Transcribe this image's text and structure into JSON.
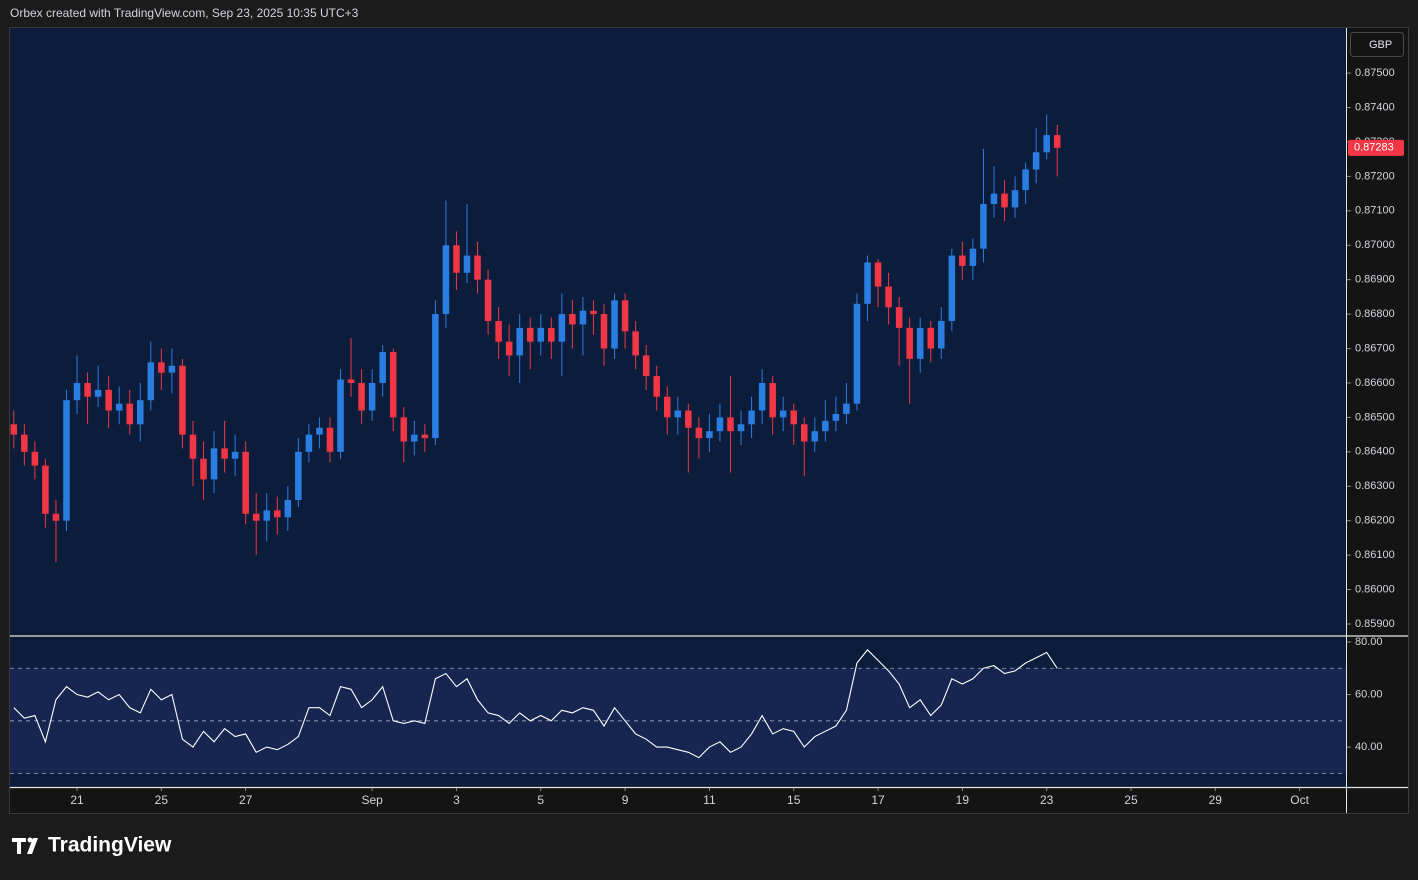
{
  "header": {
    "attribution": "Orbex created with TradingView.com, Sep 23, 2025 10:35 UTC+3"
  },
  "currency": "GBP",
  "branding": "TradingView",
  "chart_data": [
    {
      "type": "candlestick",
      "up_color": "#2a7de1",
      "down_color": "#f23645",
      "grid": false,
      "xlim": [
        -1.59,
        30.1
      ],
      "ylim": [
        0.85868,
        0.87631
      ],
      "yticks": [
        {
          "value": 0.859,
          "label": "0.85900"
        },
        {
          "value": 0.86,
          "label": "0.86000"
        },
        {
          "value": 0.861,
          "label": "0.86100"
        },
        {
          "value": 0.862,
          "label": "0.86200"
        },
        {
          "value": 0.863,
          "label": "0.86300"
        },
        {
          "value": 0.864,
          "label": "0.86400"
        },
        {
          "value": 0.865,
          "label": "0.86500"
        },
        {
          "value": 0.866,
          "label": "0.86600"
        },
        {
          "value": 0.867,
          "label": "0.86700"
        },
        {
          "value": 0.868,
          "label": "0.86800"
        },
        {
          "value": 0.869,
          "label": "0.86900"
        },
        {
          "value": 0.87,
          "label": "0.87000"
        },
        {
          "value": 0.871,
          "label": "0.87100"
        },
        {
          "value": 0.872,
          "label": "0.87200"
        },
        {
          "value": 0.873,
          "label": "0.87300"
        },
        {
          "value": 0.874,
          "label": "0.87400"
        },
        {
          "value": 0.875,
          "label": "0.87500"
        }
      ],
      "x": [
        -1.5,
        -1.25,
        -1,
        -0.75,
        -0.5,
        -0.25,
        0,
        0.25,
        0.5,
        0.75,
        1,
        1.25,
        1.5,
        1.75,
        2,
        2.25,
        2.5,
        2.75,
        3,
        3.25,
        3.5,
        3.75,
        4,
        4.25,
        4.5,
        4.75,
        5,
        5.25,
        5.5,
        5.75,
        6,
        6.25,
        6.5,
        6.75,
        7,
        7.25,
        7.5,
        7.75,
        8,
        8.25,
        8.5,
        8.75,
        9,
        9.25,
        9.5,
        9.75,
        10,
        10.25,
        10.5,
        10.75,
        11,
        11.25,
        11.5,
        11.75,
        12,
        12.25,
        12.5,
        12.75,
        13,
        13.25,
        13.5,
        13.75,
        14,
        14.25,
        14.5,
        14.75,
        15,
        15.25,
        15.5,
        15.75,
        16,
        16.25,
        16.5,
        16.75,
        17,
        17.25,
        17.5,
        17.75,
        18,
        18.25,
        18.5,
        18.75,
        19,
        19.25,
        19.5,
        19.75,
        20,
        20.25,
        20.5,
        20.75,
        21,
        21.25,
        21.5,
        21.75,
        22,
        22.25,
        22.5,
        22.75,
        23,
        23.25
      ],
      "open": [
        0.8648,
        0.8645,
        0.864,
        0.8636,
        0.8622,
        0.862,
        0.8655,
        0.866,
        0.8656,
        0.8658,
        0.8652,
        0.8654,
        0.8648,
        0.8655,
        0.8666,
        0.8663,
        0.8665,
        0.8645,
        0.8638,
        0.8632,
        0.8641,
        0.8638,
        0.864,
        0.8622,
        0.862,
        0.8623,
        0.8621,
        0.8626,
        0.864,
        0.8645,
        0.8647,
        0.864,
        0.8661,
        0.866,
        0.8652,
        0.866,
        0.8669,
        0.865,
        0.8643,
        0.8645,
        0.8644,
        0.868,
        0.87,
        0.8692,
        0.8697,
        0.869,
        0.8678,
        0.8672,
        0.8668,
        0.8676,
        0.8672,
        0.8676,
        0.8672,
        0.868,
        0.8677,
        0.8681,
        0.868,
        0.867,
        0.8684,
        0.8675,
        0.8668,
        0.8662,
        0.8656,
        0.865,
        0.8652,
        0.8647,
        0.8644,
        0.8646,
        0.865,
        0.8646,
        0.8648,
        0.8652,
        0.866,
        0.865,
        0.8652,
        0.8648,
        0.8643,
        0.8646,
        0.8649,
        0.8651,
        0.8654,
        0.8683,
        0.8695,
        0.8688,
        0.8682,
        0.8676,
        0.8667,
        0.8676,
        0.867,
        0.8678,
        0.8697,
        0.8694,
        0.8699,
        0.8712,
        0.8715,
        0.8711,
        0.8716,
        0.8722,
        0.8727,
        0.8732
      ],
      "high": [
        0.8652,
        0.8648,
        0.8643,
        0.8638,
        0.8626,
        0.8658,
        0.8668,
        0.8663,
        0.8665,
        0.8662,
        0.8659,
        0.8658,
        0.866,
        0.8672,
        0.867,
        0.867,
        0.8667,
        0.8649,
        0.8643,
        0.8646,
        0.8649,
        0.8645,
        0.8643,
        0.8628,
        0.8628,
        0.8627,
        0.863,
        0.8644,
        0.8648,
        0.865,
        0.865,
        0.8664,
        0.8673,
        0.8664,
        0.8664,
        0.8671,
        0.867,
        0.8653,
        0.8649,
        0.8648,
        0.8684,
        0.8713,
        0.8704,
        0.8712,
        0.8701,
        0.8693,
        0.8682,
        0.8677,
        0.868,
        0.8679,
        0.868,
        0.8679,
        0.8686,
        0.8684,
        0.8685,
        0.8684,
        0.8683,
        0.8686,
        0.8686,
        0.8678,
        0.8671,
        0.8665,
        0.8659,
        0.8656,
        0.8654,
        0.865,
        0.8651,
        0.8654,
        0.8662,
        0.8652,
        0.8656,
        0.8664,
        0.8662,
        0.8656,
        0.8654,
        0.865,
        0.865,
        0.8655,
        0.8656,
        0.866,
        0.8686,
        0.8697,
        0.8696,
        0.8692,
        0.8685,
        0.8679,
        0.8679,
        0.8678,
        0.8682,
        0.8699,
        0.8701,
        0.8702,
        0.8728,
        0.8723,
        0.8719,
        0.872,
        0.8724,
        0.8734,
        0.8738,
        0.8735
      ],
      "low": [
        0.8641,
        0.8636,
        0.8632,
        0.8618,
        0.8608,
        0.8617,
        0.8651,
        0.8648,
        0.8653,
        0.8647,
        0.8648,
        0.8645,
        0.8643,
        0.8652,
        0.8658,
        0.8657,
        0.8641,
        0.863,
        0.8626,
        0.8628,
        0.8634,
        0.8633,
        0.8619,
        0.861,
        0.8614,
        0.8616,
        0.8617,
        0.8624,
        0.8637,
        0.8641,
        0.8637,
        0.8638,
        0.8656,
        0.8648,
        0.8649,
        0.8656,
        0.8646,
        0.8637,
        0.8639,
        0.864,
        0.8642,
        0.8676,
        0.8687,
        0.8689,
        0.8686,
        0.8674,
        0.8667,
        0.8662,
        0.866,
        0.8664,
        0.8668,
        0.8667,
        0.8662,
        0.867,
        0.8668,
        0.8674,
        0.8665,
        0.8667,
        0.867,
        0.8664,
        0.8658,
        0.8652,
        0.8645,
        0.8645,
        0.8634,
        0.8638,
        0.864,
        0.8643,
        0.8634,
        0.8642,
        0.8644,
        0.8648,
        0.8645,
        0.8646,
        0.8642,
        0.8633,
        0.864,
        0.8643,
        0.8646,
        0.8648,
        0.8652,
        0.8678,
        0.8682,
        0.8677,
        0.8665,
        0.8654,
        0.8663,
        0.8666,
        0.8667,
        0.8675,
        0.869,
        0.869,
        0.8695,
        0.8708,
        0.8707,
        0.8708,
        0.8712,
        0.8718,
        0.8725,
        0.872
      ],
      "close": [
        0.8645,
        0.864,
        0.8636,
        0.8622,
        0.862,
        0.8655,
        0.866,
        0.8656,
        0.8658,
        0.8652,
        0.8654,
        0.8648,
        0.8655,
        0.8666,
        0.8663,
        0.8665,
        0.8645,
        0.8638,
        0.8632,
        0.8641,
        0.8638,
        0.864,
        0.8622,
        0.862,
        0.8623,
        0.8621,
        0.8626,
        0.864,
        0.8645,
        0.8647,
        0.864,
        0.8661,
        0.866,
        0.8652,
        0.866,
        0.8669,
        0.865,
        0.8643,
        0.8645,
        0.8644,
        0.868,
        0.87,
        0.8692,
        0.8697,
        0.869,
        0.8678,
        0.8672,
        0.8668,
        0.8676,
        0.8672,
        0.8676,
        0.8672,
        0.868,
        0.8677,
        0.8681,
        0.868,
        0.867,
        0.8684,
        0.8675,
        0.8668,
        0.8662,
        0.8656,
        0.865,
        0.8652,
        0.8647,
        0.8644,
        0.8646,
        0.865,
        0.8646,
        0.8648,
        0.8652,
        0.866,
        0.865,
        0.8652,
        0.8648,
        0.8643,
        0.8646,
        0.8649,
        0.8651,
        0.8654,
        0.8683,
        0.8695,
        0.8688,
        0.8682,
        0.8676,
        0.8667,
        0.8676,
        0.867,
        0.8678,
        0.8697,
        0.8694,
        0.8699,
        0.8712,
        0.8715,
        0.8711,
        0.8716,
        0.8722,
        0.8727,
        0.8732,
        0.87283
      ]
    },
    {
      "type": "line",
      "color": "#ffffff",
      "band_color": "#162650",
      "levels": [
        70,
        50,
        30
      ],
      "xlim": [
        -1.59,
        30.1
      ],
      "ylim": [
        24.8,
        81.9
      ],
      "yticks": [
        {
          "value": 80,
          "label": "80.00"
        },
        {
          "value": 60,
          "label": "60.00"
        },
        {
          "value": 40,
          "label": "40.00"
        }
      ],
      "xticks": [
        {
          "value": 0,
          "label": "21"
        },
        {
          "value": 2,
          "label": "25"
        },
        {
          "value": 4,
          "label": "27"
        },
        {
          "value": 7,
          "label": "Sep"
        },
        {
          "value": 9,
          "label": "3"
        },
        {
          "value": 11,
          "label": "5"
        },
        {
          "value": 13,
          "label": "9"
        },
        {
          "value": 15,
          "label": "11"
        },
        {
          "value": 17,
          "label": "15"
        },
        {
          "value": 19,
          "label": "17"
        },
        {
          "value": 21,
          "label": "19"
        },
        {
          "value": 23,
          "label": "23"
        },
        {
          "value": 25,
          "label": "25"
        },
        {
          "value": 27,
          "label": "29"
        },
        {
          "value": 29,
          "label": "Oct"
        }
      ],
      "values": [
        55,
        51,
        52,
        42,
        58,
        63,
        60,
        59,
        61,
        58,
        60,
        55,
        53,
        62,
        58,
        60,
        43,
        40,
        46,
        42,
        47,
        44,
        45,
        38,
        40,
        39,
        41,
        44,
        55,
        55,
        52,
        63,
        62,
        55,
        58,
        63,
        50,
        49,
        50,
        49,
        66,
        68,
        63,
        66,
        58,
        53,
        52,
        49,
        53,
        50,
        52,
        50,
        54,
        53,
        55,
        54,
        48,
        55,
        50,
        45,
        43,
        40,
        40,
        39,
        38,
        36,
        40,
        42,
        38,
        40,
        45,
        52,
        45,
        47,
        46,
        40,
        44,
        46,
        48,
        54,
        72,
        77,
        73,
        69,
        64,
        55,
        58,
        52,
        56,
        66,
        64,
        66,
        70,
        71,
        68,
        69,
        72,
        74,
        76,
        70
      ]
    }
  ]
}
